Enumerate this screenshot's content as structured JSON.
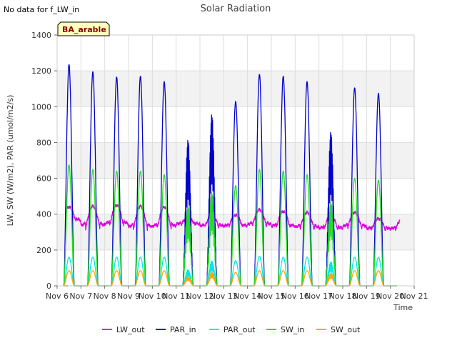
{
  "chart_data": {
    "type": "line",
    "title": "Solar Radiation",
    "xlabel": "Time",
    "ylabel": "LW, SW (W/m2), PAR (umol/m2/s)",
    "no_data_note": "No data for f_LW_in",
    "badge": "BA_arable",
    "ylim": [
      0,
      1400
    ],
    "yticks": [
      0,
      200,
      400,
      600,
      800,
      1000,
      1200,
      1400
    ],
    "xlim": [
      6,
      21
    ],
    "xticks": [
      "Nov 6",
      "Nov 7",
      "Nov 8",
      "Nov 9",
      "Nov 10",
      "Nov 11",
      "Nov 12",
      "Nov 13",
      "Nov 14",
      "Nov 15",
      "Nov 16",
      "Nov 17",
      "Nov 18",
      "Nov 19",
      "Nov 20",
      "Nov 21"
    ],
    "grid": true,
    "legend_position": "bottom",
    "days": [
      7,
      8,
      9,
      10,
      11,
      12,
      13,
      14,
      15,
      16,
      17,
      18,
      19,
      20
    ],
    "series": [
      {
        "name": "LW_out",
        "color": "#dd00dd",
        "data_start": 6.4,
        "data_end": 20.4,
        "night_level": [
          355,
          320,
          330,
          310,
          315,
          340,
          325,
          325,
          330,
          320,
          315,
          310,
          320,
          310
        ],
        "day_peak": [
          440,
          445,
          450,
          445,
          440,
          380,
          395,
          395,
          425,
          415,
          410,
          395,
          410,
          375
        ]
      },
      {
        "name": "PAR_in",
        "color": "#0000cc",
        "peaks": [
          1235,
          1195,
          1165,
          1170,
          1140,
          820,
          965,
          1030,
          1180,
          1170,
          1140,
          865,
          1105,
          1075
        ]
      },
      {
        "name": "PAR_out",
        "color": "#00e5ee",
        "peaks": [
          160,
          160,
          160,
          160,
          160,
          90,
          140,
          140,
          165,
          160,
          160,
          135,
          160,
          160
        ]
      },
      {
        "name": "SW_in",
        "color": "#22dd22",
        "peaks": [
          675,
          650,
          640,
          640,
          620,
          450,
          525,
          560,
          650,
          640,
          620,
          470,
          600,
          590
        ]
      },
      {
        "name": "SW_out",
        "color": "#ffa500",
        "peaks": [
          85,
          85,
          85,
          85,
          85,
          50,
          75,
          75,
          85,
          85,
          85,
          70,
          85,
          85
        ]
      }
    ]
  }
}
